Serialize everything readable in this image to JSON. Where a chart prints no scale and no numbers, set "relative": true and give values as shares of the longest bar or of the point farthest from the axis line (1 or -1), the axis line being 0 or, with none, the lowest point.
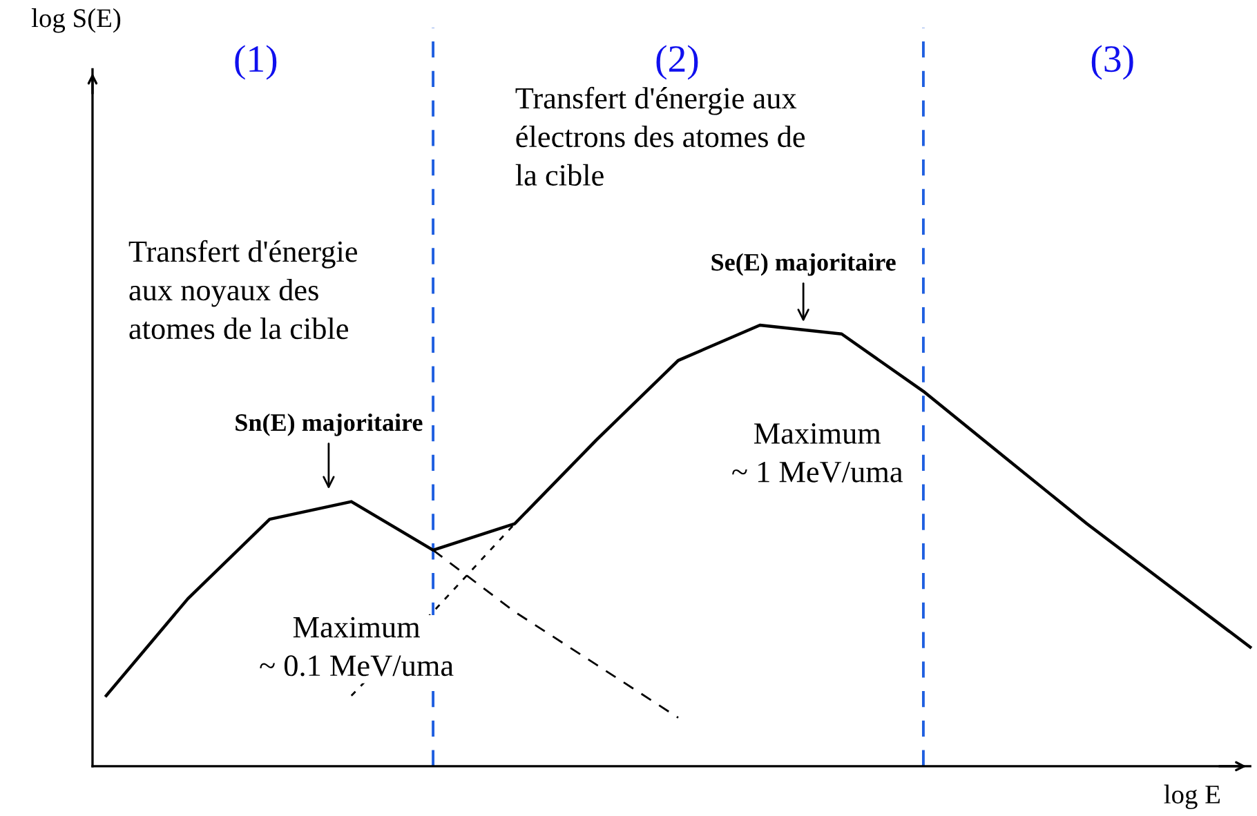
{
  "chart_data": {
    "type": "line",
    "relative": true,
    "xlabel": "log E",
    "marker": "none",
    "categories": [
      null,
      null,
      null,
      null,
      null,
      null,
      null,
      null,
      null,
      null,
      null,
      null,
      null,
      null,
      null
    ],
    "series": [
      {
        "color": "#000000",
        "line_style": "solid",
        "values": [
          0.16,
          0.38,
          0.56,
          0.6,
          0.49,
          0.55,
          0.74,
          0.92,
          1,
          0.98,
          0.85,
          0.7,
          0.55,
          0.41,
          0.27
        ]
      },
      {
        "color": "#000000",
        "line_style": "dashed",
        "values": [
          null,
          null,
          null,
          null,
          0.49,
          0.35,
          0.23,
          0.11,
          null,
          null,
          null,
          null,
          null,
          null,
          null
        ]
      },
      {
        "color": "#000000",
        "line_style": "dotted",
        "values": [
          null,
          null,
          null,
          0.16,
          0.35,
          0.55,
          null,
          null,
          null,
          null,
          null,
          null,
          null,
          null,
          null
        ]
      }
    ],
    "annotations": [
      "log S(E)",
      "(1)",
      "(2)",
      "(3)",
      "Transfert d'énergie aux\nélectrons des atomes de\nla cible",
      "Transfert d'énergie\naux noyaux des\natomes de la cible",
      "Sn(E) majoritaire",
      "Se(E) majoritaire",
      "Maximum\n~ 1 MeV/uma",
      "Maximum\n~ 0.1 MeV/uma"
    ]
  }
}
